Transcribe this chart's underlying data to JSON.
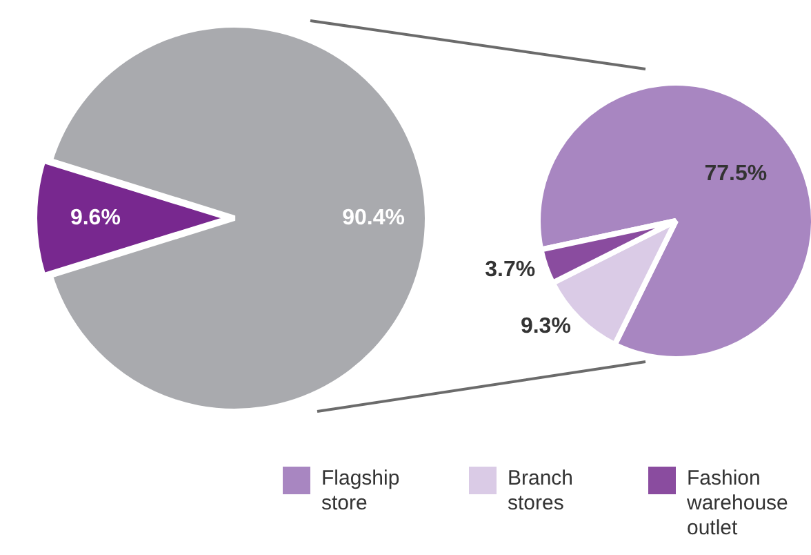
{
  "chart_data": [
    {
      "type": "pie",
      "categories": [
        null,
        null
      ],
      "values": [
        9.6,
        90.4
      ],
      "colors": [
        "#78288f",
        "#a9aaae"
      ],
      "value_labels": [
        "9.6%",
        "90.4%"
      ]
    },
    {
      "type": "pie",
      "categories": [
        "Flagship store",
        "Branch stores",
        "Fashion warehouse outlet"
      ],
      "values": [
        77.5,
        9.3,
        3.7
      ],
      "colors": [
        "#a886c1",
        "#dacbe6",
        "#8a4c9f"
      ],
      "value_labels": [
        "77.5%",
        "9.3%",
        "3.7%"
      ],
      "legend": "bottom"
    }
  ]
}
